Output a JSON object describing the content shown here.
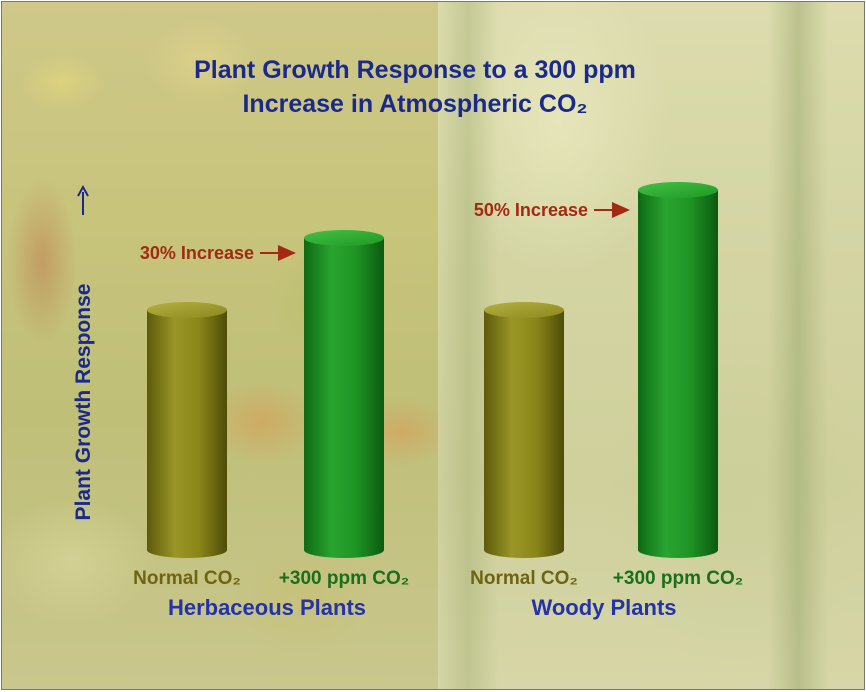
{
  "chart_data": {
    "type": "bar",
    "title_lines": [
      "Plant Growth Response to a 300 ppm",
      "Increase in Atmospheric CO₂"
    ],
    "ylabel": "Plant Growth Response",
    "groups": [
      {
        "name": "Herbaceous Plants",
        "categories": [
          "Normal CO₂",
          "+300 ppm CO₂"
        ],
        "values": [
          100,
          130
        ],
        "annotation": "30% Increase"
      },
      {
        "name": "Woody Plants",
        "categories": [
          "Normal CO₂",
          "+300 ppm CO₂"
        ],
        "values": [
          100,
          150
        ],
        "annotation": "50% Increase"
      }
    ],
    "colors": {
      "normal": "#8a8a1c",
      "elevated": "#1f9a25",
      "title": "#1a2a8c",
      "annotation": "#a22a12",
      "category_normal": "#6e6512",
      "category_elevated": "#1a6f1a"
    }
  }
}
